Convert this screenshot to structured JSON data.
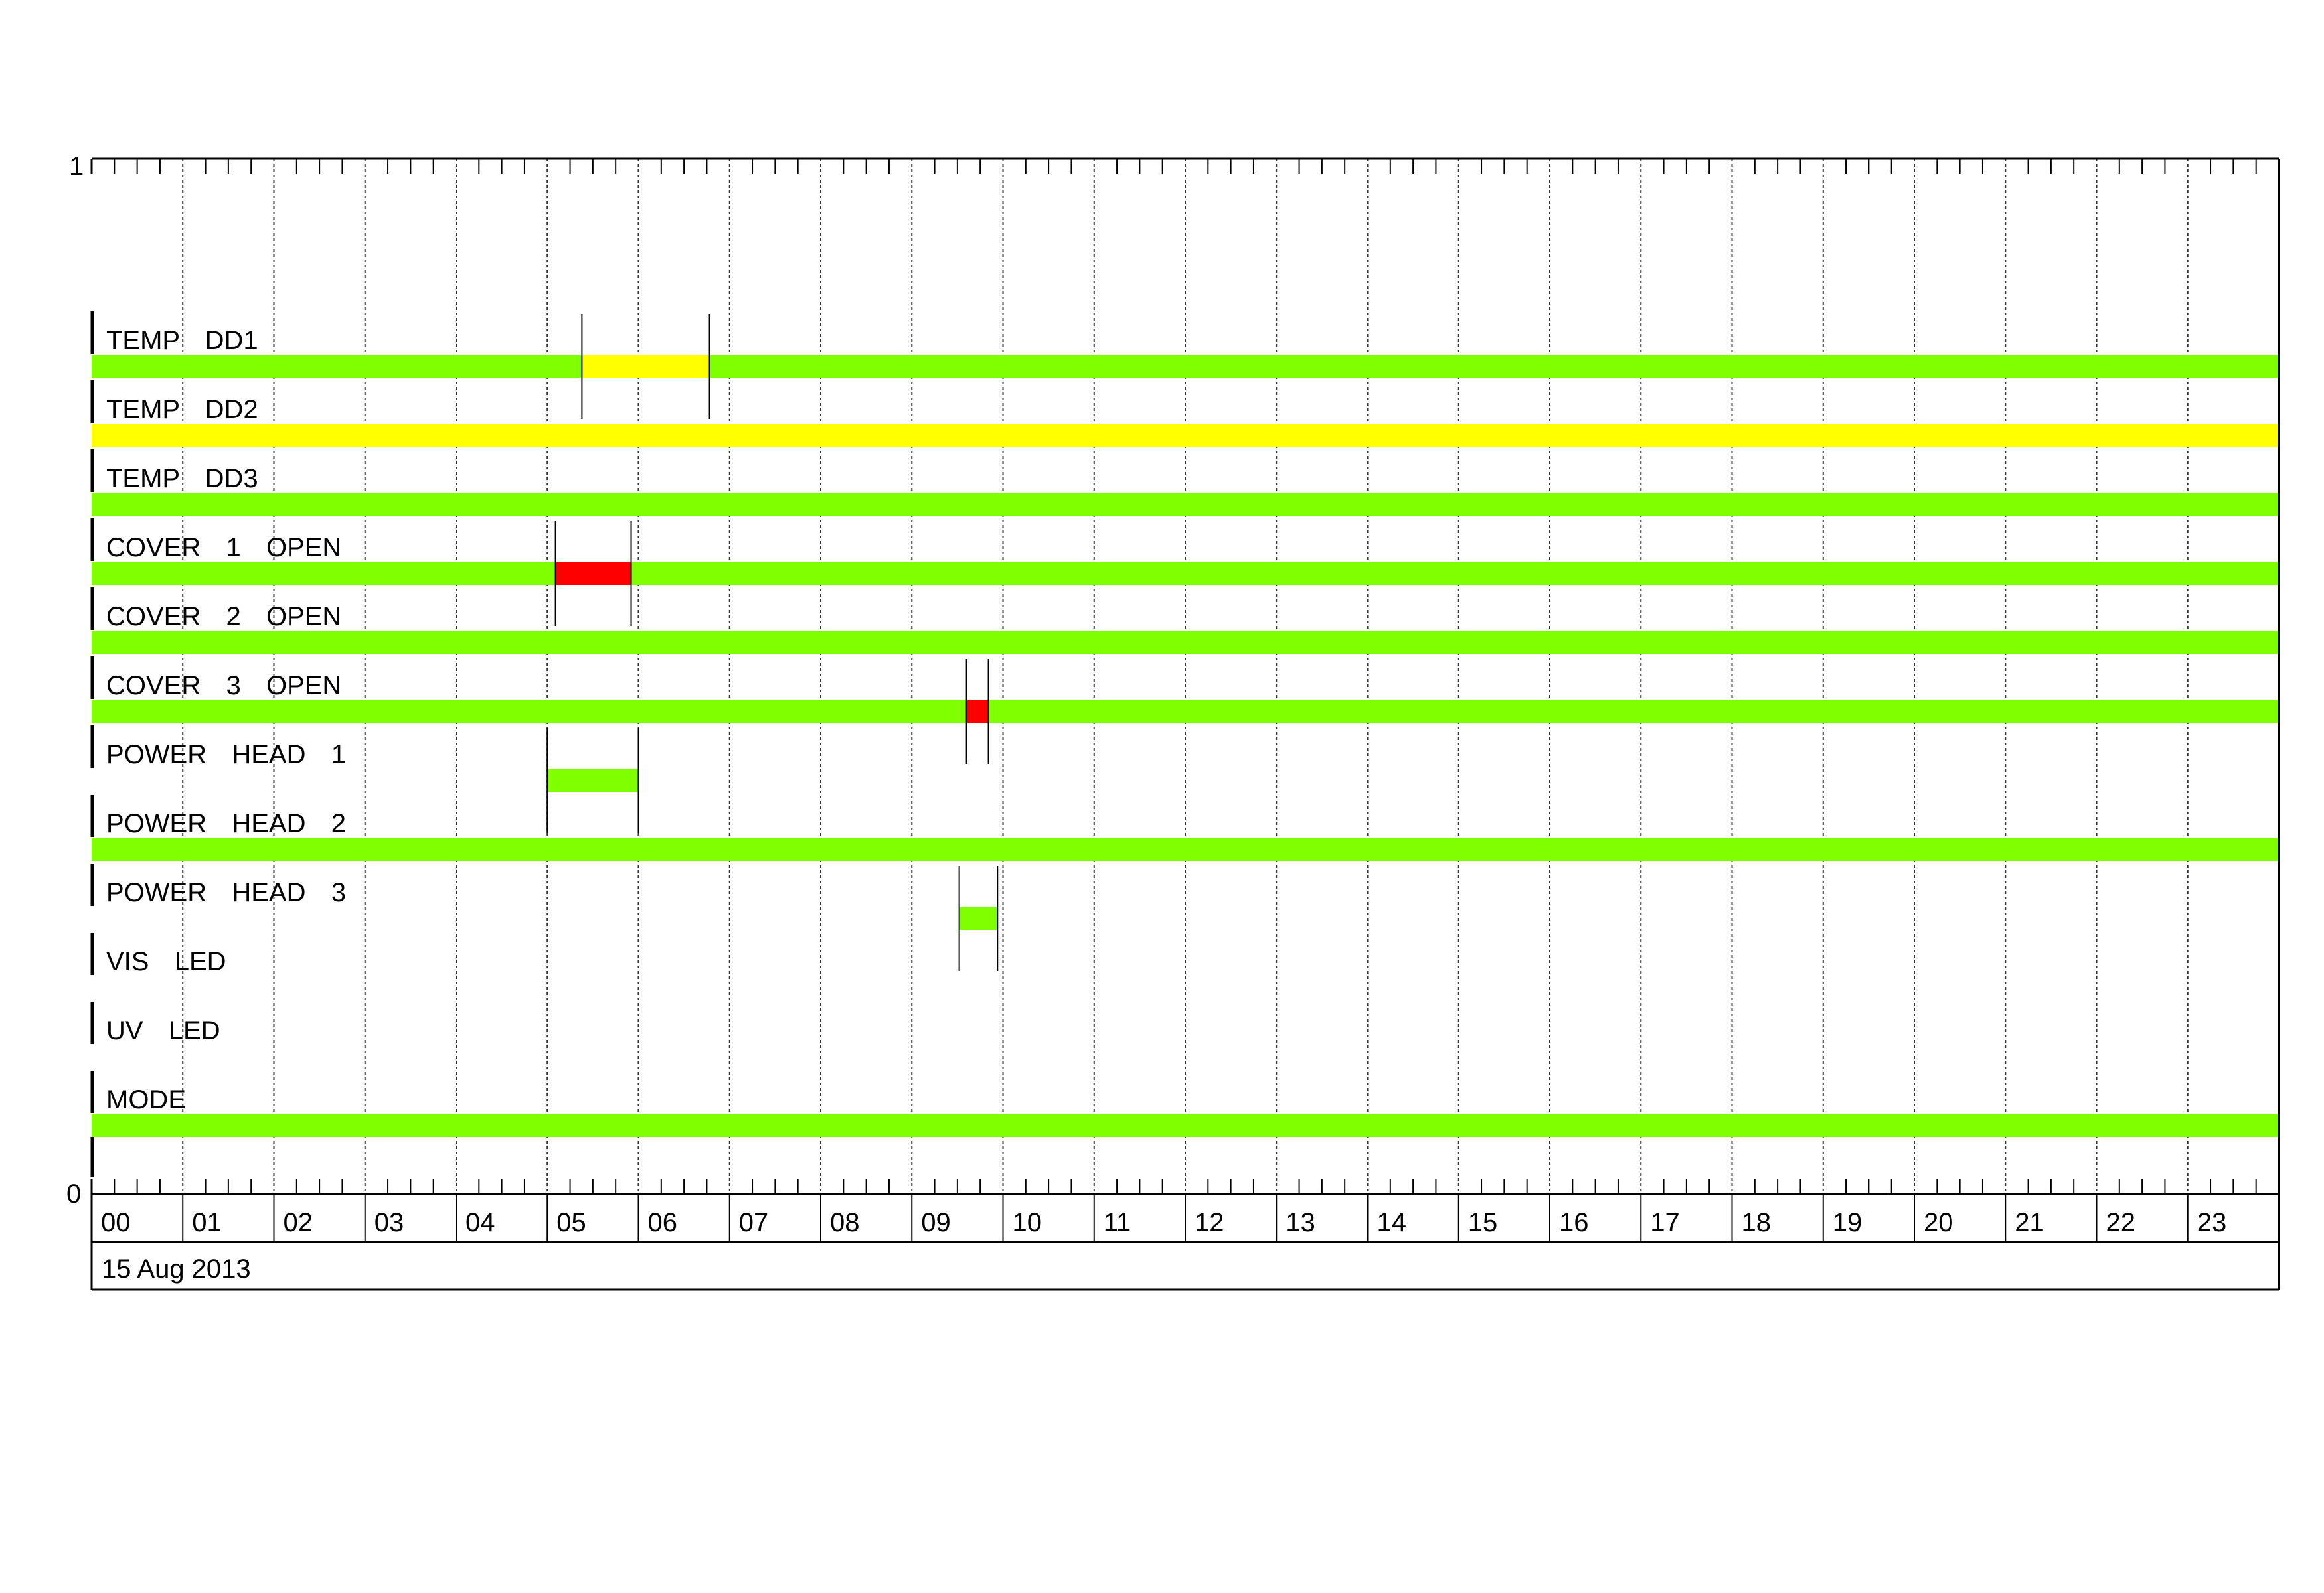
{
  "chart_data": {
    "type": "timeline",
    "x_unit": "hour of day",
    "xlim": [
      0,
      24
    ],
    "ylim": [
      0,
      1
    ],
    "y_ticks": [
      "1",
      "0"
    ],
    "x_ticks": [
      "00",
      "01",
      "02",
      "03",
      "04",
      "05",
      "06",
      "07",
      "08",
      "09",
      "10",
      "11",
      "12",
      "13",
      "14",
      "15",
      "16",
      "17",
      "18",
      "19",
      "20",
      "21",
      "22",
      "23"
    ],
    "date_label": "15 Aug 2013",
    "grid": "dotted vertical lines each hour, minor ticks every 15 min",
    "colors": {
      "ok": "#7fff00",
      "warning": "#ffff00",
      "alarm": "#ff0000"
    },
    "rows": [
      {
        "label": "TEMP  DD1",
        "segments": [
          {
            "start": 0,
            "end": 5.38,
            "state": "ok"
          },
          {
            "start": 5.38,
            "end": 6.78,
            "state": "warning"
          },
          {
            "start": 6.78,
            "end": 24,
            "state": "ok"
          }
        ],
        "markers": [
          5.38,
          6.78
        ]
      },
      {
        "label": "TEMP  DD2",
        "segments": [
          {
            "start": 0,
            "end": 24,
            "state": "warning"
          }
        ],
        "markers": []
      },
      {
        "label": "TEMP  DD3",
        "segments": [
          {
            "start": 0,
            "end": 24,
            "state": "ok"
          }
        ],
        "markers": []
      },
      {
        "label": "COVER  1  OPEN",
        "segments": [
          {
            "start": 0,
            "end": 5.09,
            "state": "ok"
          },
          {
            "start": 5.09,
            "end": 5.92,
            "state": "alarm"
          },
          {
            "start": 5.92,
            "end": 24,
            "state": "ok"
          }
        ],
        "markers": [
          5.09,
          5.92
        ]
      },
      {
        "label": "COVER  2  OPEN",
        "segments": [
          {
            "start": 0,
            "end": 24,
            "state": "ok"
          }
        ],
        "markers": []
      },
      {
        "label": "COVER  3  OPEN",
        "segments": [
          {
            "start": 0,
            "end": 9.6,
            "state": "ok"
          },
          {
            "start": 9.6,
            "end": 9.84,
            "state": "alarm"
          },
          {
            "start": 9.84,
            "end": 24,
            "state": "ok"
          }
        ],
        "markers": [
          9.6,
          9.84
        ]
      },
      {
        "label": "POWER  HEAD  1",
        "segments": [
          {
            "start": 5.0,
            "end": 6.0,
            "state": "ok"
          }
        ],
        "markers": [
          5.0,
          6.0
        ]
      },
      {
        "label": "POWER  HEAD  2",
        "segments": [
          {
            "start": 0,
            "end": 24,
            "state": "ok"
          }
        ],
        "markers": []
      },
      {
        "label": "POWER  HEAD  3",
        "segments": [
          {
            "start": 9.52,
            "end": 9.94,
            "state": "ok"
          }
        ],
        "markers": [
          9.52,
          9.94
        ]
      },
      {
        "label": "VIS  LED",
        "segments": [],
        "markers": []
      },
      {
        "label": "UV  LED",
        "segments": [],
        "markers": []
      },
      {
        "label": "MODE",
        "segments": [
          {
            "start": 0,
            "end": 24,
            "state": "ok"
          }
        ],
        "markers": []
      }
    ]
  }
}
